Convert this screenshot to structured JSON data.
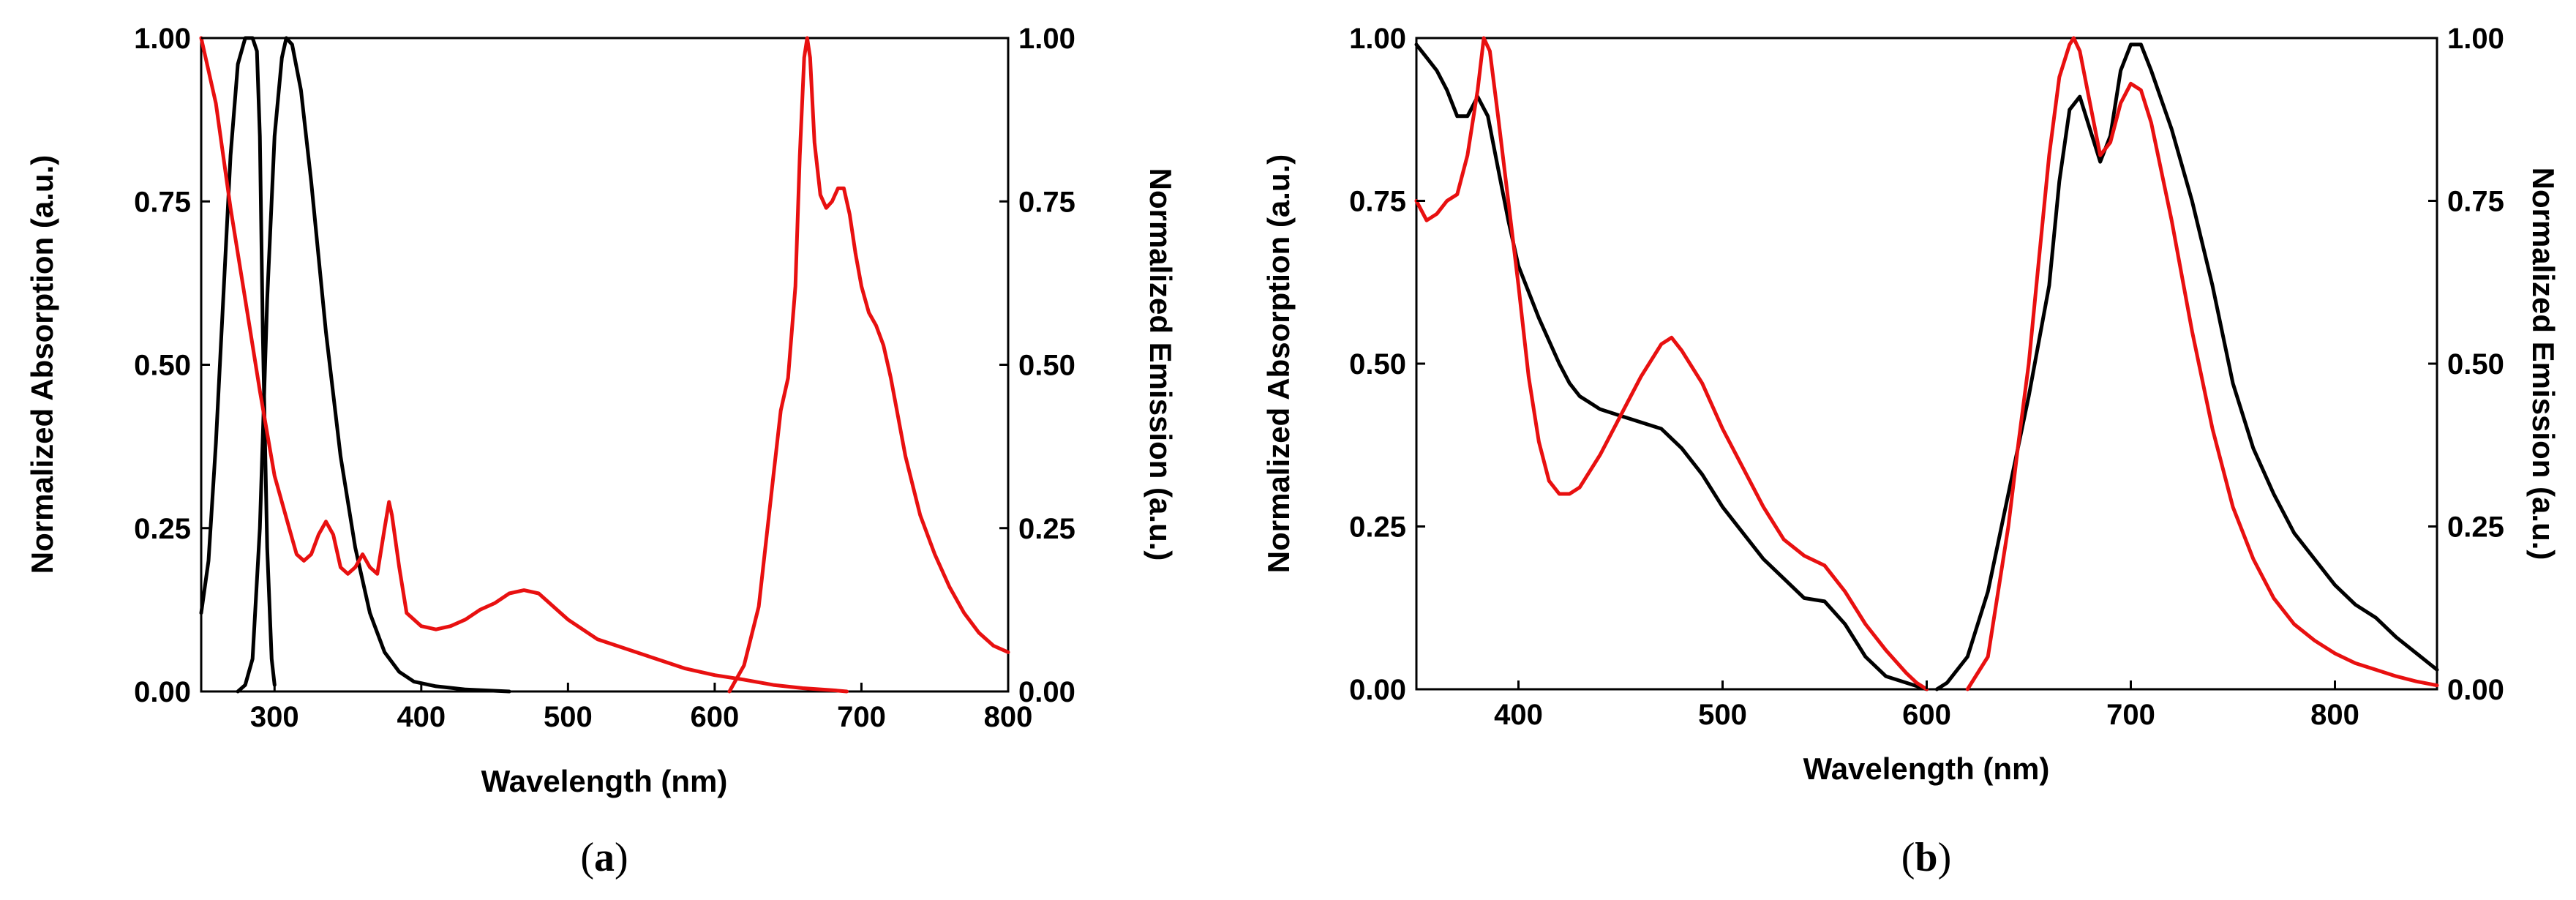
{
  "chart_data": [
    {
      "id": "a",
      "type": "line",
      "caption_open": "(",
      "caption_letter": "a",
      "caption_close": ")",
      "xlabel": "Wavelength (nm)",
      "ylabel_left": "Normalized Absorption (a.u.)",
      "ylabel_right": "Normalized Emission (a.u.)",
      "xlim": [
        250,
        800
      ],
      "ylim": [
        0,
        1
      ],
      "xticks": [
        300,
        400,
        500,
        600,
        700,
        800
      ],
      "yticks": [
        0,
        0.25,
        0.5,
        0.75,
        1
      ],
      "ytick_labels": [
        "0.00",
        "0.25",
        "0.50",
        "0.75",
        "1.00"
      ],
      "grid": false,
      "series": [
        {
          "name": "black-absorption",
          "color": "#000000",
          "x": [
            250,
            255,
            260,
            265,
            270,
            275,
            280,
            282,
            285,
            288,
            290,
            292,
            295,
            298,
            300
          ],
          "y": [
            0.12,
            0.2,
            0.38,
            0.6,
            0.82,
            0.96,
            1.0,
            1.0,
            1.0,
            0.98,
            0.85,
            0.55,
            0.22,
            0.05,
            0.01
          ]
        },
        {
          "name": "black-emission",
          "color": "#000000",
          "x": [
            275,
            280,
            285,
            290,
            295,
            300,
            305,
            308,
            312,
            318,
            325,
            335,
            345,
            355,
            365,
            375,
            385,
            395,
            410,
            430,
            460
          ],
          "y": [
            0.0,
            0.01,
            0.05,
            0.25,
            0.6,
            0.85,
            0.97,
            1.0,
            0.99,
            0.92,
            0.78,
            0.55,
            0.36,
            0.22,
            0.12,
            0.06,
            0.03,
            0.015,
            0.008,
            0.003,
            0.0
          ]
        },
        {
          "name": "red-absorption",
          "color": "#e81010",
          "x": [
            250,
            260,
            270,
            280,
            290,
            300,
            310,
            315,
            320,
            325,
            330,
            335,
            340,
            345,
            350,
            355,
            360,
            365,
            370,
            375,
            378,
            380,
            385,
            390,
            400,
            410,
            420,
            430,
            440,
            450,
            460,
            470,
            480,
            490,
            500,
            520,
            540,
            560,
            580,
            600,
            620,
            640,
            660,
            680,
            690
          ],
          "y": [
            1.0,
            0.9,
            0.74,
            0.6,
            0.46,
            0.33,
            0.25,
            0.21,
            0.2,
            0.21,
            0.24,
            0.26,
            0.24,
            0.19,
            0.18,
            0.19,
            0.21,
            0.19,
            0.18,
            0.25,
            0.29,
            0.27,
            0.19,
            0.12,
            0.1,
            0.095,
            0.1,
            0.11,
            0.125,
            0.135,
            0.15,
            0.155,
            0.15,
            0.13,
            0.11,
            0.08,
            0.065,
            0.05,
            0.035,
            0.025,
            0.018,
            0.01,
            0.005,
            0.002,
            0.0
          ]
        },
        {
          "name": "red-emission",
          "color": "#e81010",
          "x": [
            610,
            620,
            630,
            640,
            645,
            650,
            655,
            658,
            661,
            663,
            665,
            668,
            672,
            676,
            680,
            684,
            688,
            692,
            696,
            700,
            705,
            710,
            715,
            720,
            725,
            730,
            740,
            750,
            760,
            770,
            780,
            790,
            800
          ],
          "y": [
            0.0,
            0.04,
            0.13,
            0.33,
            0.43,
            0.48,
            0.62,
            0.82,
            0.97,
            1.0,
            0.97,
            0.84,
            0.76,
            0.74,
            0.75,
            0.77,
            0.77,
            0.73,
            0.67,
            0.62,
            0.58,
            0.56,
            0.53,
            0.48,
            0.42,
            0.36,
            0.27,
            0.21,
            0.16,
            0.12,
            0.09,
            0.07,
            0.06
          ]
        }
      ]
    },
    {
      "id": "b",
      "type": "line",
      "caption_open": "(",
      "caption_letter": "b",
      "caption_close": ")",
      "xlabel": "Wavelength (nm)",
      "ylabel_left": "Normalized Absorption (a.u.)",
      "ylabel_right": "Normalized Emission (a.u.)",
      "xlim": [
        350,
        850
      ],
      "ylim": [
        0,
        1
      ],
      "xticks": [
        400,
        500,
        600,
        700,
        800
      ],
      "yticks": [
        0,
        0.25,
        0.5,
        0.75,
        1
      ],
      "ytick_labels": [
        "0.00",
        "0.25",
        "0.50",
        "0.75",
        "1.00"
      ],
      "grid": false,
      "series": [
        {
          "name": "black-absorption",
          "color": "#000000",
          "x": [
            350,
            355,
            360,
            365,
            370,
            375,
            380,
            385,
            390,
            395,
            400,
            410,
            420,
            425,
            430,
            435,
            440,
            450,
            460,
            470,
            480,
            490,
            500,
            510,
            520,
            530,
            540,
            550,
            560,
            570,
            580,
            590,
            600
          ],
          "y": [
            0.99,
            0.97,
            0.95,
            0.92,
            0.88,
            0.88,
            0.91,
            0.88,
            0.8,
            0.72,
            0.65,
            0.57,
            0.5,
            0.47,
            0.45,
            0.44,
            0.43,
            0.42,
            0.41,
            0.4,
            0.37,
            0.33,
            0.28,
            0.24,
            0.2,
            0.17,
            0.14,
            0.135,
            0.1,
            0.05,
            0.02,
            0.01,
            0.0
          ]
        },
        {
          "name": "black-emission",
          "color": "#000000",
          "x": [
            605,
            610,
            620,
            630,
            640,
            650,
            660,
            665,
            670,
            675,
            680,
            685,
            690,
            695,
            700,
            705,
            710,
            720,
            730,
            740,
            750,
            760,
            770,
            780,
            790,
            800,
            810,
            820,
            830,
            840,
            850
          ],
          "y": [
            0.0,
            0.01,
            0.05,
            0.15,
            0.3,
            0.45,
            0.62,
            0.78,
            0.89,
            0.91,
            0.86,
            0.81,
            0.85,
            0.95,
            0.99,
            0.99,
            0.95,
            0.86,
            0.75,
            0.62,
            0.47,
            0.37,
            0.3,
            0.24,
            0.2,
            0.16,
            0.13,
            0.11,
            0.08,
            0.055,
            0.03
          ]
        },
        {
          "name": "red-absorption",
          "color": "#e81010",
          "x": [
            350,
            355,
            360,
            365,
            370,
            375,
            380,
            383,
            386,
            390,
            395,
            400,
            405,
            410,
            415,
            420,
            425,
            430,
            440,
            450,
            460,
            470,
            475,
            480,
            490,
            500,
            510,
            520,
            530,
            540,
            550,
            560,
            570,
            580,
            590,
            595,
            600
          ],
          "y": [
            0.75,
            0.72,
            0.73,
            0.75,
            0.76,
            0.82,
            0.92,
            1.0,
            0.98,
            0.88,
            0.75,
            0.62,
            0.48,
            0.38,
            0.32,
            0.3,
            0.3,
            0.31,
            0.36,
            0.42,
            0.48,
            0.53,
            0.54,
            0.52,
            0.47,
            0.4,
            0.34,
            0.28,
            0.23,
            0.205,
            0.19,
            0.15,
            0.1,
            0.06,
            0.025,
            0.01,
            0.0
          ]
        },
        {
          "name": "red-emission",
          "color": "#e81010",
          "x": [
            620,
            630,
            640,
            645,
            650,
            655,
            660,
            665,
            670,
            672,
            675,
            680,
            685,
            690,
            695,
            700,
            705,
            710,
            720,
            730,
            740,
            750,
            760,
            770,
            780,
            790,
            800,
            810,
            820,
            830,
            840,
            850
          ],
          "y": [
            0.0,
            0.05,
            0.25,
            0.38,
            0.5,
            0.66,
            0.82,
            0.94,
            0.99,
            1.0,
            0.98,
            0.9,
            0.82,
            0.84,
            0.9,
            0.93,
            0.92,
            0.87,
            0.72,
            0.55,
            0.4,
            0.28,
            0.2,
            0.14,
            0.1,
            0.075,
            0.055,
            0.04,
            0.03,
            0.02,
            0.012,
            0.006
          ]
        }
      ]
    }
  ]
}
